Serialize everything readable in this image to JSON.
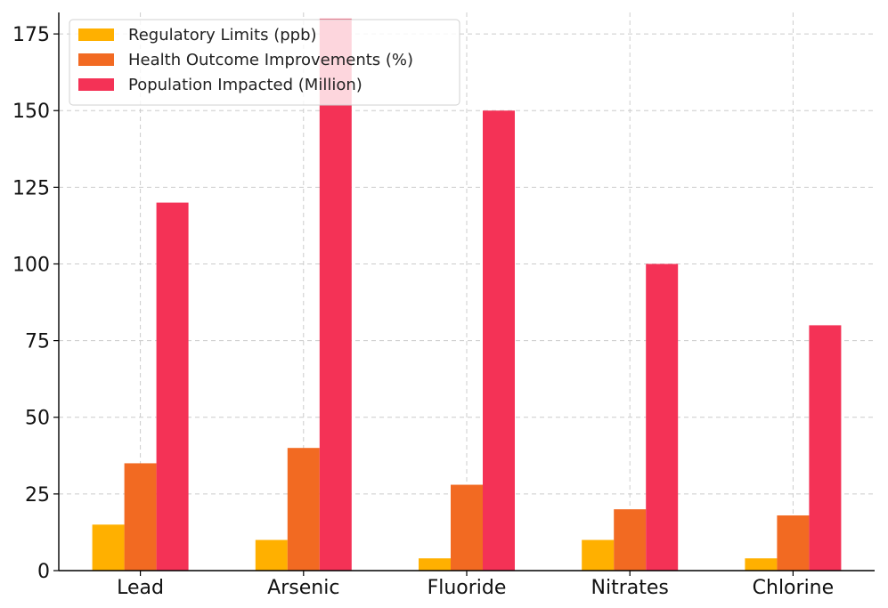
{
  "chart_data": {
    "type": "bar",
    "title": "",
    "xlabel": "",
    "ylabel": "",
    "categories": [
      "Lead",
      "Arsenic",
      "Fluoride",
      "Nitrates",
      "Chlorine"
    ],
    "series": [
      {
        "name": "Regulatory Limits (ppb)",
        "values": [
          15,
          10,
          4,
          10,
          4
        ],
        "color": "#FFB000"
      },
      {
        "name": "Health Outcome Improvements (%)",
        "values": [
          35,
          40,
          28,
          20,
          18
        ],
        "color": "#F26A22"
      },
      {
        "name": "Population Impacted (Million)",
        "values": [
          120,
          180,
          150,
          100,
          80
        ],
        "color": "#F43256"
      }
    ],
    "ylim": [
      0,
      180
    ],
    "yticks": [
      0,
      25,
      50,
      75,
      100,
      125,
      150,
      175
    ],
    "grid": true,
    "legend_position": "top-left"
  }
}
